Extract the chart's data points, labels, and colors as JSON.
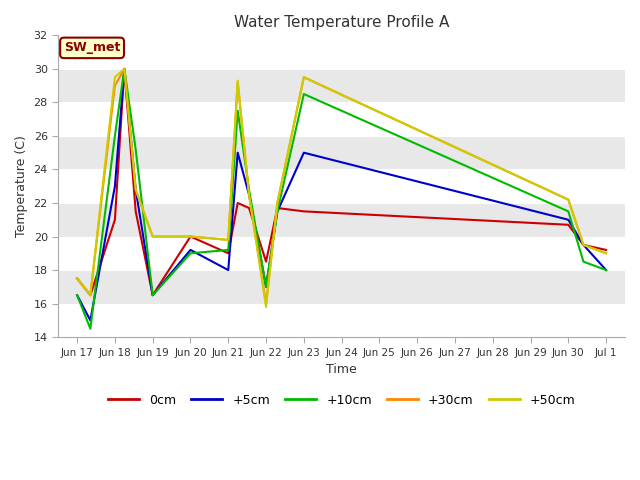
{
  "title": "Water Temperature Profile A",
  "xlabel": "Time",
  "ylabel": "Temperature (C)",
  "ylim": [
    14,
    32
  ],
  "annotation": "SW_met",
  "series": {
    "0cm": {
      "color": "#cc0000",
      "x": [
        0.0,
        0.35,
        1.0,
        1.25,
        1.55,
        2.0,
        3.0,
        4.0,
        4.25,
        4.55,
        5.0,
        5.3,
        6.0,
        13.0,
        13.4,
        14.0
      ],
      "y": [
        17.5,
        16.5,
        21.0,
        30.0,
        21.5,
        16.5,
        20.0,
        19.0,
        22.0,
        21.7,
        18.5,
        21.7,
        21.5,
        20.7,
        19.5,
        19.2
      ]
    },
    "+5cm": {
      "color": "#0000cc",
      "x": [
        0.0,
        0.35,
        1.0,
        1.25,
        1.55,
        2.0,
        3.0,
        4.0,
        4.25,
        4.55,
        5.0,
        5.3,
        6.0,
        13.0,
        13.4,
        14.0
      ],
      "y": [
        16.5,
        15.0,
        23.0,
        30.0,
        22.8,
        16.5,
        19.2,
        18.0,
        25.0,
        22.5,
        17.0,
        21.5,
        25.0,
        21.0,
        19.5,
        18.0
      ]
    },
    "+10cm": {
      "color": "#00bb00",
      "x": [
        0.0,
        0.35,
        1.0,
        1.25,
        1.55,
        2.0,
        3.0,
        4.0,
        4.25,
        4.55,
        5.0,
        5.3,
        6.0,
        13.0,
        13.4,
        14.0
      ],
      "y": [
        16.5,
        14.5,
        26.0,
        30.0,
        25.2,
        16.5,
        19.0,
        19.2,
        27.5,
        22.8,
        17.0,
        21.5,
        28.5,
        21.5,
        18.5,
        18.0
      ]
    },
    "+30cm": {
      "color": "#ff8800",
      "x": [
        0.0,
        0.35,
        1.0,
        1.25,
        1.55,
        2.0,
        3.0,
        4.0,
        4.25,
        4.55,
        5.0,
        5.3,
        6.0,
        13.0,
        13.4,
        14.0
      ],
      "y": [
        17.5,
        16.5,
        29.0,
        30.0,
        22.8,
        20.0,
        20.0,
        19.8,
        29.2,
        22.5,
        16.0,
        22.0,
        29.5,
        22.2,
        19.5,
        19.0
      ]
    },
    "+50cm": {
      "color": "#cccc00",
      "x": [
        0.0,
        0.35,
        1.0,
        1.25,
        1.55,
        2.0,
        3.0,
        4.0,
        4.25,
        4.55,
        5.0,
        5.3,
        6.0,
        13.0,
        13.4,
        14.0
      ],
      "y": [
        17.5,
        16.5,
        29.5,
        30.0,
        22.8,
        20.0,
        20.0,
        19.8,
        29.3,
        22.5,
        15.8,
        22.0,
        29.5,
        22.2,
        19.5,
        19.0
      ]
    }
  },
  "xtick_positions": [
    0,
    1,
    2,
    3,
    4,
    5,
    6,
    7,
    8,
    9,
    10,
    11,
    12,
    13,
    14
  ],
  "xtick_labels": [
    "Jun 17",
    "Jun 18",
    "Jun 19",
    "Jun 20",
    "Jun 21",
    "Jun 22",
    "Jun 23",
    "Jun 24",
    "Jun 25",
    "Jun 26",
    "Jun 27",
    "Jun 28",
    "Jun 29",
    "Jun 30",
    "Jul 1"
  ],
  "ytick_values": [
    14,
    16,
    18,
    20,
    22,
    24,
    26,
    28,
    30,
    32
  ],
  "legend_labels": [
    "0cm",
    "+5cm",
    "+10cm",
    "+30cm",
    "+50cm"
  ],
  "legend_colors": [
    "#cc0000",
    "#0000cc",
    "#00bb00",
    "#ff8800",
    "#cccc00"
  ],
  "band_colors": [
    "#ffffff",
    "#e8e8e8"
  ]
}
